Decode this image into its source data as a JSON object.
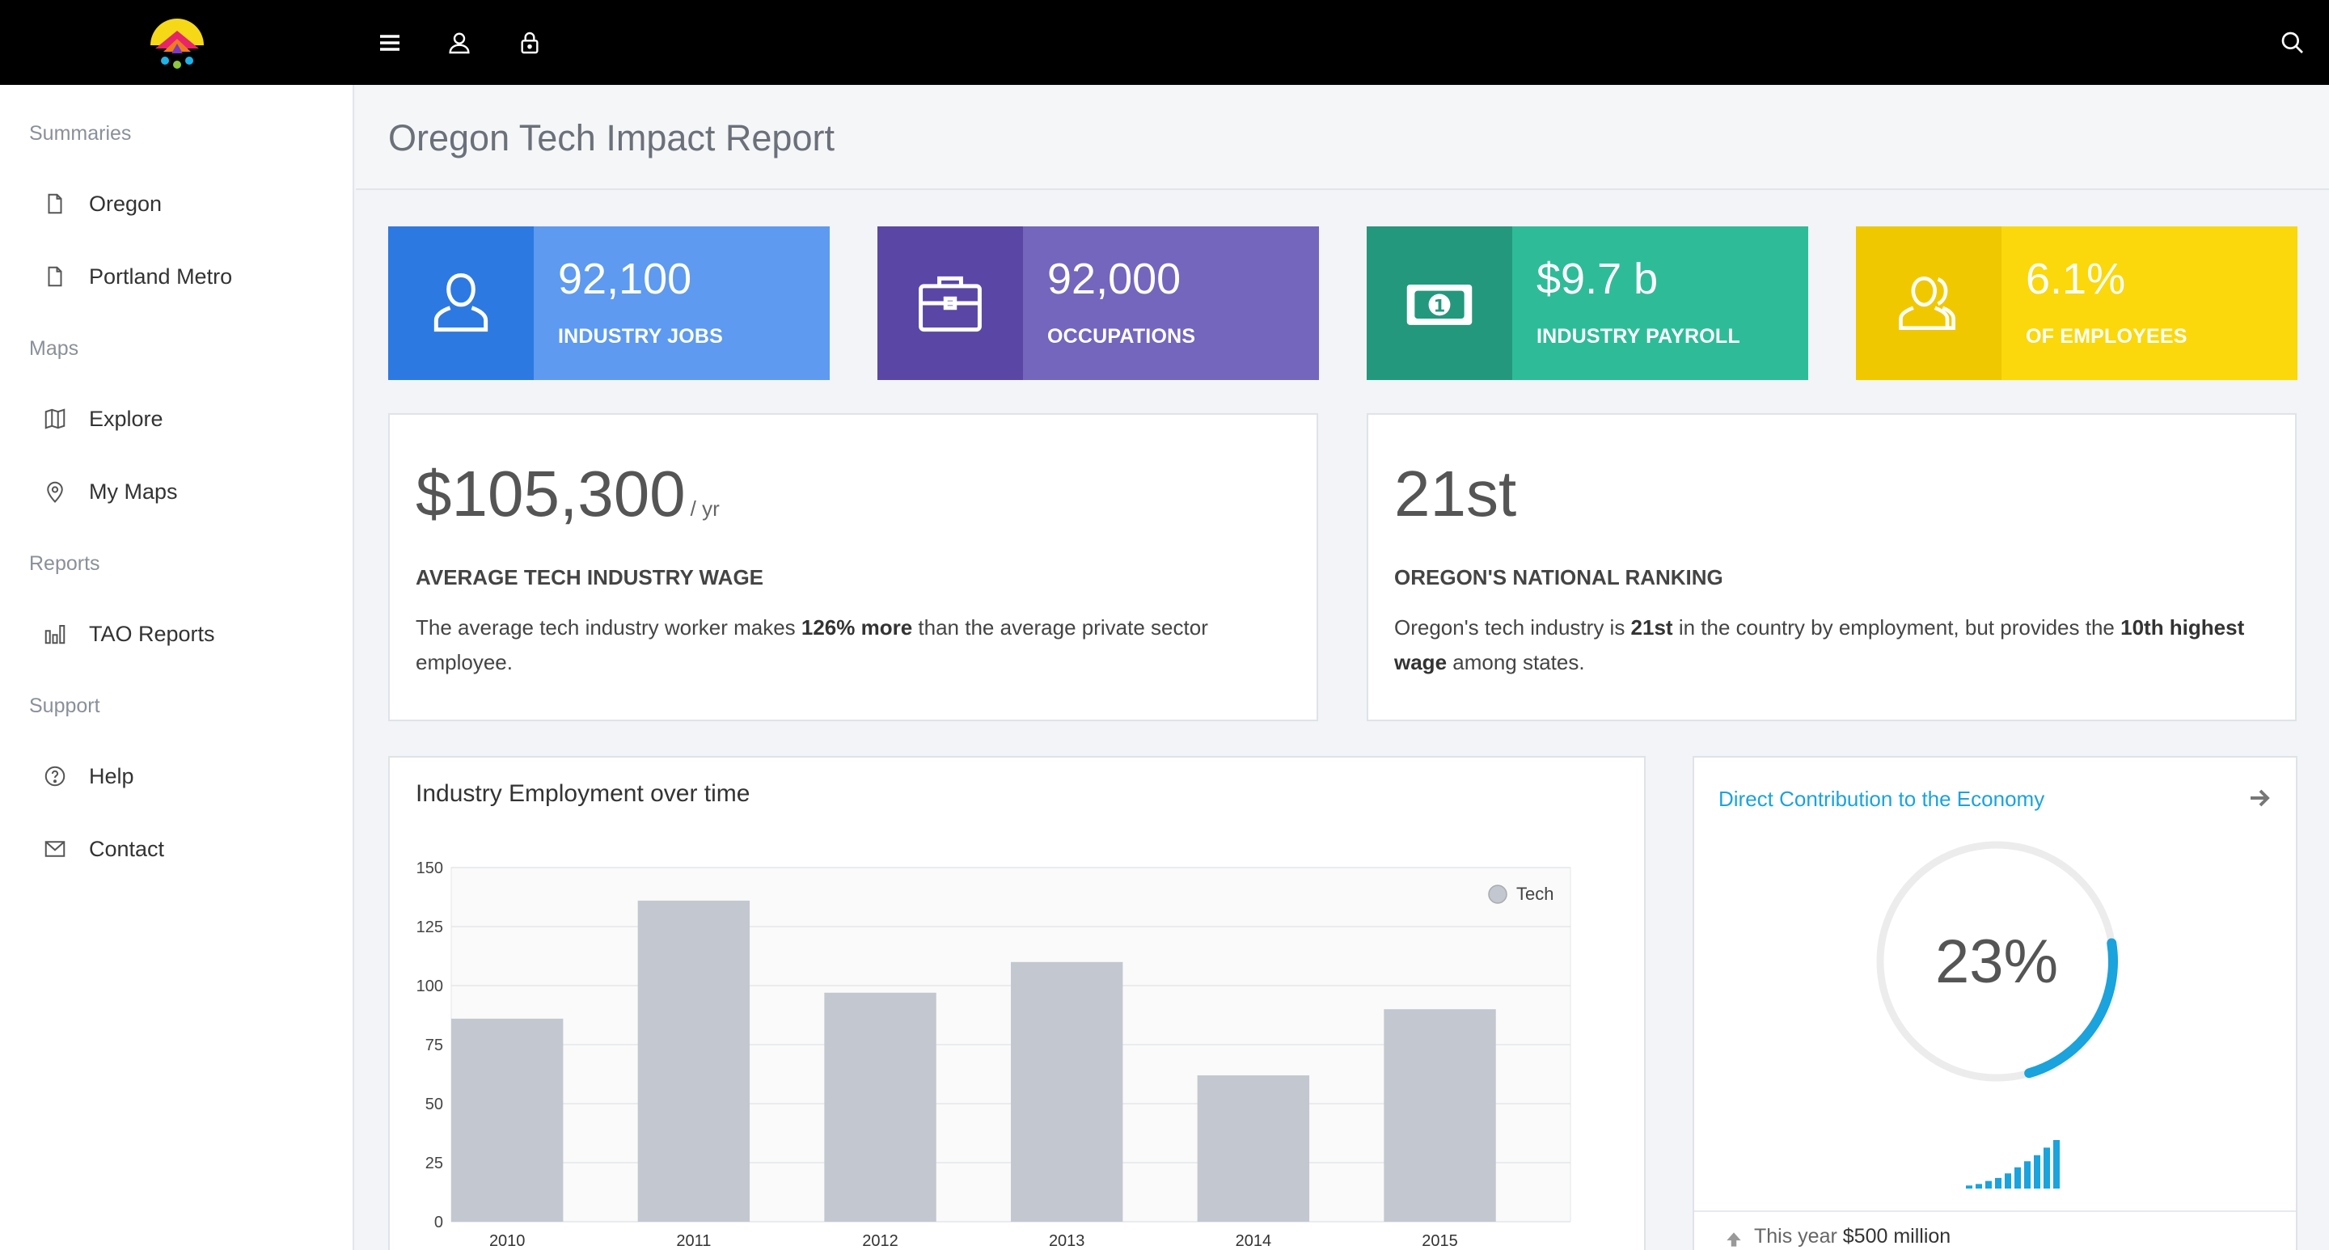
{
  "topbar": {
    "icons": [
      "menu-icon",
      "user-icon",
      "lock-icon",
      "search-icon"
    ]
  },
  "sidebar": {
    "sections": [
      {
        "label": "Summaries",
        "items": [
          {
            "label": "Oregon",
            "icon": "document-icon"
          },
          {
            "label": "Portland Metro",
            "icon": "document-icon"
          }
        ]
      },
      {
        "label": "Maps",
        "items": [
          {
            "label": "Explore",
            "icon": "map-icon"
          },
          {
            "label": "My Maps",
            "icon": "map-pin-icon"
          }
        ]
      },
      {
        "label": "Reports",
        "items": [
          {
            "label": "TAO Reports",
            "icon": "bar-chart-icon"
          }
        ]
      },
      {
        "label": "Support",
        "items": [
          {
            "label": "Help",
            "icon": "help-circle-icon"
          },
          {
            "label": "Contact",
            "icon": "mail-icon"
          }
        ]
      }
    ]
  },
  "page": {
    "title": "Oregon Tech Impact Report"
  },
  "tiles": [
    {
      "value": "92,100",
      "label": "INDUSTRY JOBS",
      "icon": "person-icon",
      "color_dark": "#2d79e2",
      "color_light": "#5d9af0"
    },
    {
      "value": "92,000",
      "label": "OCCUPATIONS",
      "icon": "briefcase-icon",
      "color_dark": "#5a46a5",
      "color_light": "#7465bd"
    },
    {
      "value": "$9.7 b",
      "label": "INDUSTRY PAYROLL",
      "icon": "money-icon",
      "color_dark": "#23987c",
      "color_light": "#2ebc98"
    },
    {
      "value": "6.1%",
      "label": "OF EMPLOYEES",
      "icon": "people-icon",
      "color_dark": "#f0c800",
      "color_light": "#fad80b"
    }
  ],
  "wage_card": {
    "value": "$105,300",
    "unit": "/ yr",
    "heading": "AVERAGE TECH INDUSTRY WAGE",
    "text_1": "The average tech industry worker makes ",
    "bold_1": "126% more",
    "text_2": " than the average private sector employee."
  },
  "ranking_card": {
    "value": "21st",
    "heading": "OREGON'S NATIONAL RANKING",
    "text_1": "Oregon's tech industry is ",
    "bold_1": "21st",
    "text_2": " in the country by employment, but provides the ",
    "bold_2": "10th highest wage",
    "text_3": " among states."
  },
  "chart_card": {
    "title": "Industry Employment over time"
  },
  "chart_data": {
    "type": "bar",
    "title": "Industry Employment over time",
    "categories": [
      "2010",
      "2011",
      "2012",
      "2013",
      "2014",
      "2015"
    ],
    "series": [
      {
        "name": "Tech",
        "values": [
          86,
          136,
          97,
          110,
          62,
          90
        ]
      }
    ],
    "ylim": [
      0,
      150
    ],
    "yticks": [
      0,
      25,
      50,
      75,
      100,
      125,
      150
    ],
    "legend": "top-right",
    "grid": true,
    "bar_color": "#c3c7cf"
  },
  "donut_card": {
    "title": "Direct Contribution to the Economy",
    "percent_label": "23%",
    "percent": 23,
    "footer_prefix": "This year",
    "footer_value": "$500 million",
    "accent": "#1aa3dd",
    "sparkline": [
      2,
      3,
      5,
      7,
      10,
      14,
      18,
      22,
      27,
      32
    ]
  }
}
